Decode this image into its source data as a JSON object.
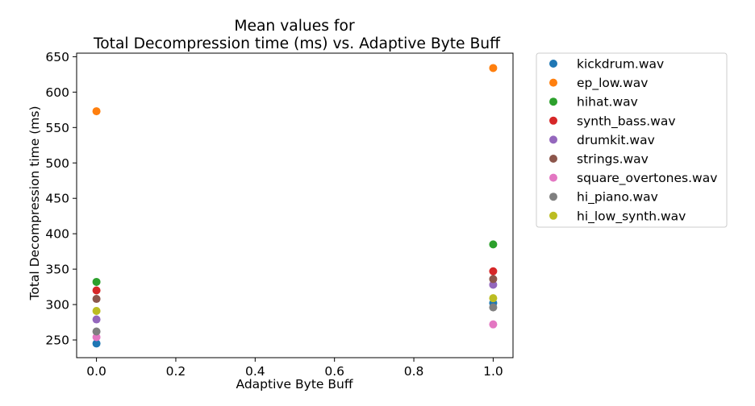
{
  "chart_data": {
    "type": "scatter",
    "title_lines": [
      "Mean values for",
      "Total Decompression time (ms) vs. Adaptive Byte Buff"
    ],
    "xlabel": "Adaptive Byte Buff",
    "ylabel": "Total Decompression time (ms)",
    "xlim": [
      -0.05,
      1.05
    ],
    "ylim": [
      225,
      655
    ],
    "xticks": [
      0.0,
      0.2,
      0.4,
      0.6,
      0.8,
      1.0
    ],
    "xtick_labels": [
      "0.0",
      "0.2",
      "0.4",
      "0.6",
      "0.8",
      "1.0"
    ],
    "yticks": [
      250,
      300,
      350,
      400,
      450,
      500,
      550,
      600,
      650
    ],
    "ytick_labels": [
      "250",
      "300",
      "350",
      "400",
      "450",
      "500",
      "550",
      "600",
      "650"
    ],
    "grid": false,
    "legend_position": "outside-right",
    "series": [
      {
        "name": "kickdrum.wav",
        "color": "#1f77b4",
        "points": [
          [
            0,
            245
          ],
          [
            1,
            302
          ]
        ]
      },
      {
        "name": "ep_low.wav",
        "color": "#ff7f0e",
        "points": [
          [
            0,
            573
          ],
          [
            1,
            634
          ]
        ]
      },
      {
        "name": "hihat.wav",
        "color": "#2ca02c",
        "points": [
          [
            0,
            332
          ],
          [
            1,
            385
          ]
        ]
      },
      {
        "name": "synth_bass.wav",
        "color": "#d62728",
        "points": [
          [
            0,
            320
          ],
          [
            1,
            347
          ]
        ]
      },
      {
        "name": "drumkit.wav",
        "color": "#9467bd",
        "points": [
          [
            0,
            279
          ],
          [
            1,
            328
          ]
        ]
      },
      {
        "name": "strings.wav",
        "color": "#8c564b",
        "points": [
          [
            0,
            308
          ],
          [
            1,
            336
          ]
        ]
      },
      {
        "name": "square_overtones.wav",
        "color": "#e377c2",
        "points": [
          [
            0,
            254
          ],
          [
            1,
            272
          ]
        ]
      },
      {
        "name": "hi_piano.wav",
        "color": "#7f7f7f",
        "points": [
          [
            0,
            262
          ],
          [
            1,
            296
          ]
        ]
      },
      {
        "name": "hi_low_synth.wav",
        "color": "#bcbd22",
        "points": [
          [
            0,
            291
          ],
          [
            1,
            309
          ]
        ]
      }
    ]
  }
}
